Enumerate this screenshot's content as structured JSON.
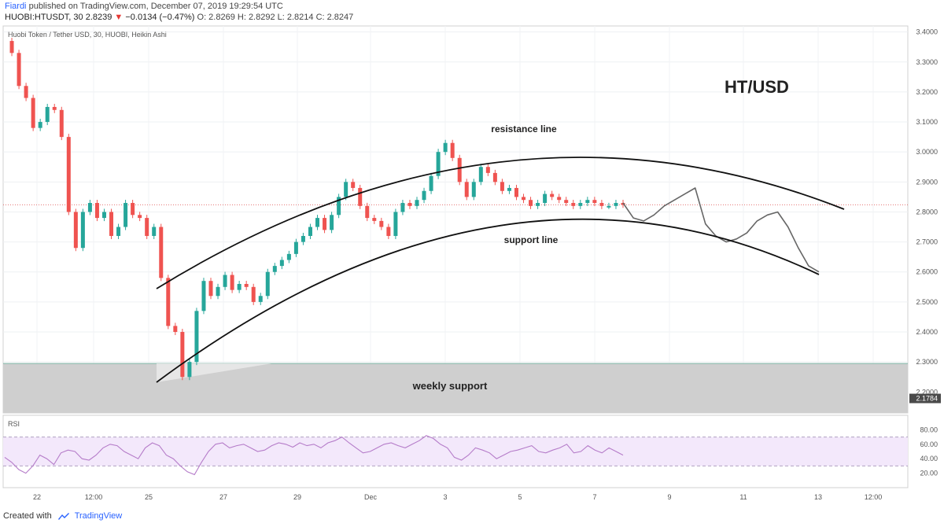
{
  "header": {
    "author": "Fiardi",
    "published": "published on TradingView.com, December 07, 2019 19:29:54 UTC",
    "symbol": "HUOBI:HTUSDT, 30",
    "last": "2.8239",
    "change": "−0.0134 (−0.47%)",
    "ohlc": "O: 2.8269  H: 2.8292  L: 2.8214  C: 2.8247"
  },
  "footer": {
    "created": "Created with",
    "brand": "TradingView"
  },
  "chart_data": {
    "type": "line",
    "title": "Huobi Token / Tether USD, 30, HUOBI, Heikin Ashi",
    "annotation_title": "HT/USD",
    "price_axis": {
      "ylim": [
        2.13,
        3.42
      ],
      "ticks": [
        "3.4000",
        "3.3000",
        "3.2000",
        "3.1000",
        "3.0000",
        "2.9000",
        "2.8000",
        "2.7000",
        "2.6000",
        "2.5000",
        "2.4000",
        "2.3000",
        "2.2000"
      ],
      "label_low": "2.1784"
    },
    "rsi_axis": {
      "ylim": [
        0,
        100
      ],
      "ticks": [
        "80.00",
        "60.00",
        "40.00",
        "20.00"
      ],
      "band": [
        30,
        70
      ]
    },
    "x_ticks": [
      "22",
      "12:00",
      "25",
      "27",
      "29",
      "Dec",
      "3",
      "5",
      "7",
      "9",
      "11",
      "13",
      "12:00"
    ],
    "current_price": 2.8239,
    "series": [
      {
        "values": [
          3.37,
          3.33,
          3.22,
          3.18,
          3.08,
          3.1,
          3.15,
          3.14,
          3.05,
          2.8,
          2.68,
          2.8,
          2.83,
          2.78,
          2.8,
          2.72,
          2.75,
          2.83,
          2.79,
          2.78,
          2.72,
          2.75,
          2.58,
          2.42,
          2.4,
          2.25,
          2.3,
          2.47,
          2.57,
          2.52,
          2.55,
          2.59,
          2.54,
          2.56,
          2.55,
          2.5,
          2.52,
          2.6,
          2.62,
          2.64,
          2.66,
          2.7,
          2.72,
          2.75,
          2.78,
          2.74,
          2.79,
          2.85,
          2.9,
          2.88,
          2.82,
          2.78,
          2.77,
          2.75,
          2.72,
          2.8,
          2.83,
          2.82,
          2.84,
          2.87,
          2.92,
          3.0,
          3.03,
          2.98,
          2.9,
          2.85,
          2.9,
          2.95,
          2.93,
          2.9,
          2.87,
          2.88,
          2.85,
          2.84,
          2.82,
          2.83,
          2.86,
          2.85,
          2.84,
          2.83,
          2.82,
          2.83,
          2.84,
          2.83,
          2.82,
          2.82,
          2.83,
          2.824
        ],
        "color": "#26a69a"
      },
      {
        "values": [
          2.83,
          2.78,
          2.77,
          2.79,
          2.82,
          2.84,
          2.86,
          2.88,
          2.76,
          2.72,
          2.7,
          2.71,
          2.73,
          2.77,
          2.79,
          2.8,
          2.75,
          2.68,
          2.62,
          2.6
        ],
        "color": "#666666"
      }
    ],
    "rsi_values": [
      42,
      35,
      25,
      20,
      30,
      45,
      40,
      32,
      48,
      52,
      50,
      40,
      38,
      45,
      55,
      60,
      58,
      50,
      45,
      40,
      55,
      62,
      58,
      45,
      40,
      30,
      22,
      18,
      35,
      50,
      60,
      62,
      55,
      58,
      60,
      55,
      50,
      52,
      58,
      62,
      60,
      56,
      62,
      58,
      60,
      55,
      62,
      65,
      70,
      62,
      55,
      48,
      50,
      55,
      60,
      62,
      58,
      55,
      60,
      65,
      72,
      68,
      60,
      55,
      42,
      38,
      45,
      55,
      52,
      48,
      40,
      45,
      50,
      52,
      55,
      58,
      50,
      48,
      52,
      55,
      60,
      48,
      50,
      58,
      52,
      48,
      55,
      50,
      45
    ],
    "annotations": {
      "resistance_label": "resistance line",
      "support_label": "support line",
      "weekly_support_label": "weekly support",
      "weekly_support_range": [
        2.13,
        2.295
      ]
    },
    "rsi_label": "RSI"
  }
}
